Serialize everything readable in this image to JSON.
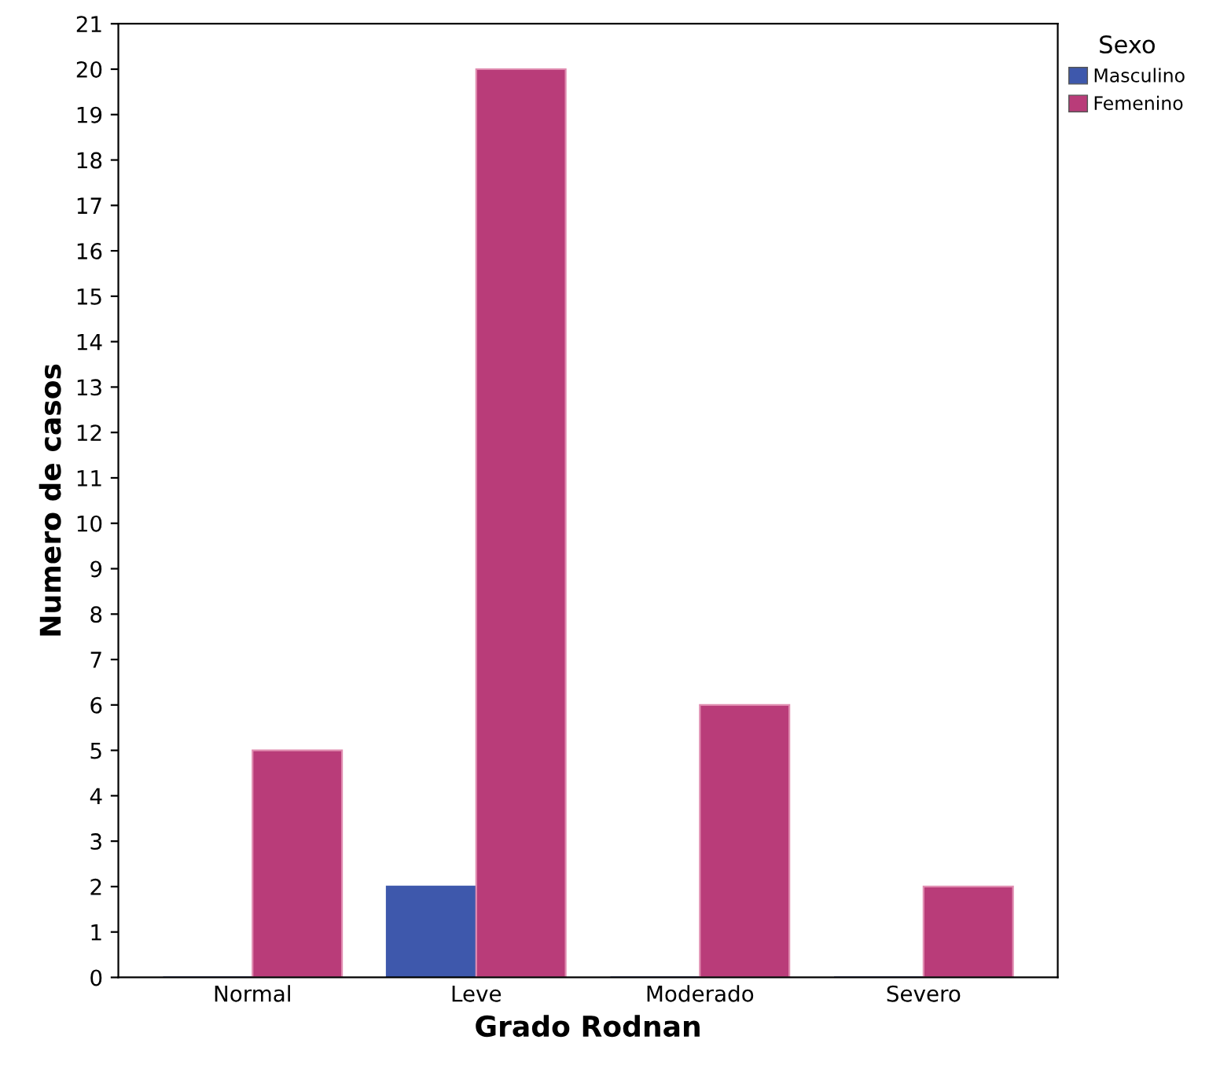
{
  "chart_data": {
    "type": "bar",
    "xlabel": "Grado Rodnan",
    "ylabel": "Numero de casos",
    "categories": [
      "Normal",
      "Leve",
      "Moderado",
      "Severo"
    ],
    "series": [
      {
        "name": "Masculino",
        "color": "#3e58ac",
        "values": [
          0,
          2,
          0,
          0
        ]
      },
      {
        "name": "Femenino",
        "color": "#b93c79",
        "values": [
          5,
          20,
          6,
          2
        ]
      }
    ],
    "legend_title": "Sexo",
    "legend": "top right",
    "grid": false,
    "ylim": [
      0,
      21
    ],
    "yticks": [
      0,
      1,
      2,
      3,
      4,
      5,
      6,
      7,
      8,
      9,
      10,
      11,
      12,
      13,
      14,
      15,
      16,
      17,
      18,
      19,
      20,
      21
    ]
  }
}
